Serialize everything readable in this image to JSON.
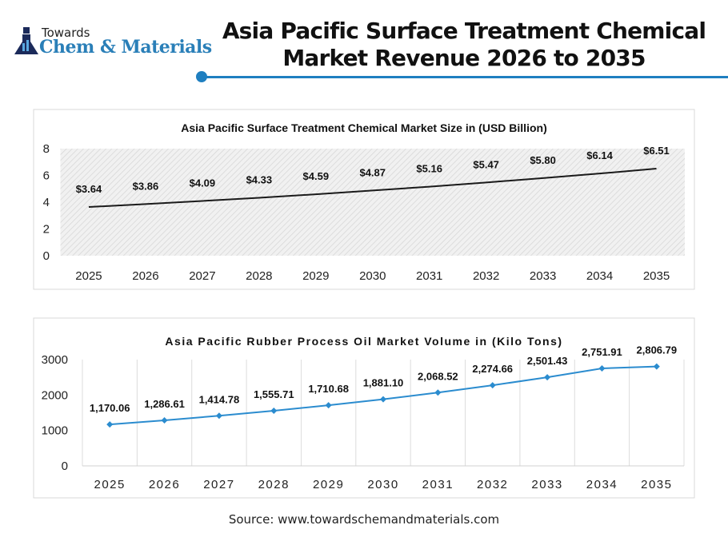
{
  "logo": {
    "line1": "Towards",
    "line2": "Chem & Materials"
  },
  "header": {
    "title_line1": "Asia Pacific Surface Treatment Chemical",
    "title_line2": "Market Revenue 2026 to 2035",
    "accent": "#1f7fc0"
  },
  "source": "Source: www.towardschemandmaterials.com",
  "chart_data": [
    {
      "type": "line",
      "title": "Asia Pacific Surface Treatment Chemical Market Size in (USD Billion)",
      "categories": [
        "2025",
        "2026",
        "2027",
        "2028",
        "2029",
        "2030",
        "2031",
        "2032",
        "2033",
        "2034",
        "2035"
      ],
      "values": [
        3.64,
        3.86,
        4.09,
        4.33,
        4.59,
        4.87,
        5.16,
        5.47,
        5.8,
        6.14,
        6.51
      ],
      "data_labels": [
        "$3.64",
        "$3.86",
        "$4.09",
        "$4.33",
        "$4.59",
        "$4.87",
        "$5.16",
        "$5.47",
        "$5.80",
        "$6.14",
        "$6.51"
      ],
      "yticks": [
        "0",
        "2",
        "4",
        "6",
        "8"
      ],
      "ylim": [
        0,
        8
      ],
      "color": "#1a1a1a",
      "background": "hatched gray",
      "grid": false
    },
    {
      "type": "line",
      "title": "Asia Pacific Rubber Process Oil Market Volume in (Kilo Tons)",
      "categories": [
        "2025",
        "2026",
        "2027",
        "2028",
        "2029",
        "2030",
        "2031",
        "2032",
        "2033",
        "2034",
        "2035"
      ],
      "values": [
        1170.06,
        1286.61,
        1414.78,
        1555.71,
        1710.68,
        1881.1,
        2068.52,
        2274.66,
        2501.43,
        2751.91,
        2806.79
      ],
      "data_labels": [
        "1,170.06",
        "1,286.61",
        "1,414.78",
        "1,555.71",
        "1,710.68",
        "1,881.10",
        "2,068.52",
        "2,274.66",
        "2,501.43",
        "2,751.91",
        "2,806.79"
      ],
      "yticks": [
        "0",
        "1000",
        "2000",
        "3000"
      ],
      "ylim": [
        0,
        3000
      ],
      "color": "#2b8ccf",
      "markers": "diamond",
      "grid": "vertical"
    }
  ]
}
